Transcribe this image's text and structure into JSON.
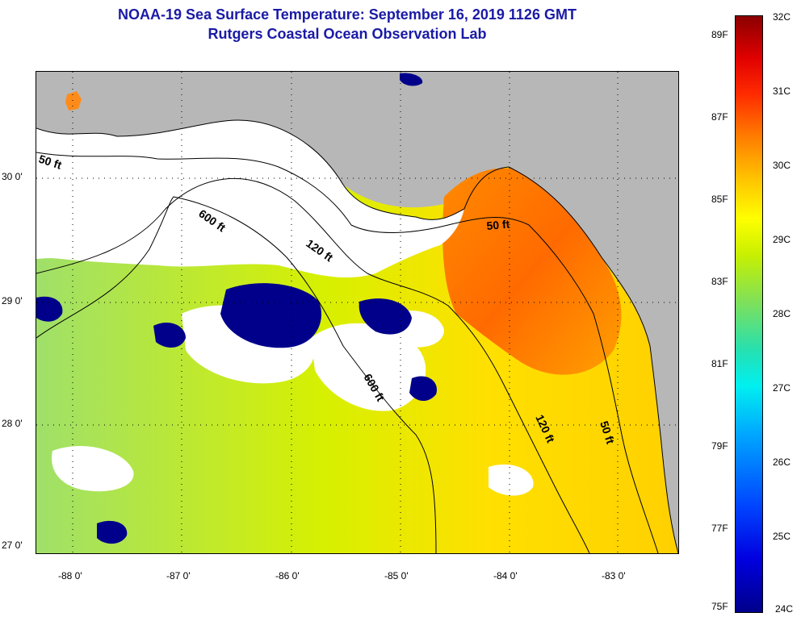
{
  "header": {
    "title_line1": "NOAA-19 Sea Surface Temperature:  September 16, 2019 1126 GMT",
    "title_line2": "Rutgers Coastal Ocean Observation Lab"
  },
  "map": {
    "lat_labels": [
      "30 0'",
      "29 0'",
      "28 0'",
      "27 0'"
    ],
    "lon_labels": [
      "-88 0'",
      "-87 0'",
      "-86 0'",
      "-85 0'",
      "-84 0'",
      "-83 0'"
    ],
    "contour_labels": [
      "50 ft",
      "600 ft",
      "120 ft",
      "50 ft",
      "600 ft",
      "120 ft",
      "50 ft"
    ],
    "colors": {
      "land": "#b7b7b7",
      "cloud": "#ffffff",
      "cold": "#00008b",
      "contour": "#000000"
    }
  },
  "colorbar": {
    "fahrenheit_labels": [
      "89F",
      "87F",
      "85F",
      "83F",
      "81F",
      "79F",
      "77F",
      "75F"
    ],
    "celsius_labels": [
      "32C",
      "31C",
      "30C",
      "29C",
      "28C",
      "27C",
      "26C",
      "25C",
      "24C"
    ]
  }
}
